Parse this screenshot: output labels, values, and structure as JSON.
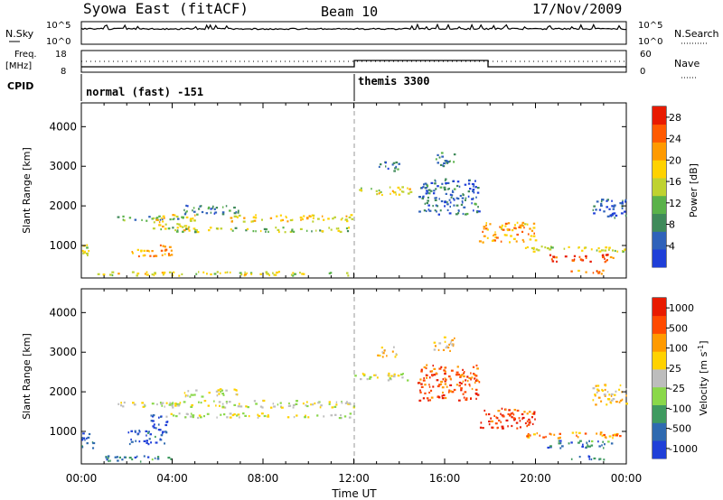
{
  "header": {
    "station": "Syowa East (fitACF)",
    "beam": "Beam 10",
    "date": "17/Nov/2009"
  },
  "noise_panel": {
    "left_label": "N.Sky",
    "right_label": "N.Search",
    "left_ticks": [
      "10^5",
      "10^0"
    ],
    "right_ticks": [
      "10^5",
      "10^0"
    ]
  },
  "freq_panel": {
    "left_label_line1": "Freq.",
    "left_label_line2": "[MHz]",
    "right_label": "Nave",
    "left_ticks": [
      "18",
      "8"
    ],
    "right_ticks": [
      "60",
      "0"
    ],
    "cpid_label": "CPID",
    "modes": [
      {
        "name": "normal (fast) -151",
        "start_hour": 0,
        "end_hour": 12
      },
      {
        "name": "themis 3300",
        "start_hour": 12,
        "end_hour": 24
      }
    ]
  },
  "chart_data": [
    {
      "type": "heatmap",
      "title": "",
      "xlabel": "",
      "ylabel": "Slant Range [km]",
      "xlim": [
        0,
        24
      ],
      "ylim": [
        180,
        4600
      ],
      "yticks": [
        1000,
        2000,
        3000,
        4000
      ],
      "colorbar": {
        "label": "Power [dB]",
        "ticks": [
          "4",
          "8",
          "12",
          "16",
          "20",
          "24",
          "28"
        ],
        "range": [
          0,
          30
        ],
        "colors": [
          "#1f3fd8",
          "#2f62ba",
          "#3f8a5a",
          "#5ab24a",
          "#bfd230",
          "#ffd200",
          "#ff9a00",
          "#ff5a00",
          "#e81a00"
        ]
      },
      "bands": [
        {
          "t0": 0.0,
          "t1": 0.3,
          "r0": 700,
          "r1": 1100,
          "level": 0.5
        },
        {
          "t0": 0.2,
          "t1": 12.0,
          "r0": 260,
          "r1": 360,
          "level": 0.55
        },
        {
          "t0": 1.5,
          "t1": 4.5,
          "r0": 1640,
          "r1": 1760,
          "level": 0.3
        },
        {
          "t0": 2.2,
          "t1": 4.0,
          "r0": 750,
          "r1": 1050,
          "level": 0.72
        },
        {
          "t0": 3.0,
          "t1": 5.0,
          "r0": 1400,
          "r1": 1800,
          "level": 0.55
        },
        {
          "t0": 4.5,
          "t1": 7.0,
          "r0": 1800,
          "r1": 2050,
          "level": 0.25
        },
        {
          "t0": 6.5,
          "t1": 12.0,
          "r0": 1620,
          "r1": 1800,
          "level": 0.6
        },
        {
          "t0": 3.5,
          "t1": 12.0,
          "r0": 1360,
          "r1": 1480,
          "level": 0.45
        },
        {
          "t0": 12.0,
          "t1": 14.5,
          "r0": 2300,
          "r1": 2500,
          "level": 0.55
        },
        {
          "t0": 13.0,
          "t1": 14.0,
          "r0": 2900,
          "r1": 3150,
          "level": 0.2
        },
        {
          "t0": 15.5,
          "t1": 16.4,
          "r0": 3000,
          "r1": 3400,
          "level": 0.25
        },
        {
          "t0": 14.8,
          "t1": 17.5,
          "r0": 1800,
          "r1": 2700,
          "level": 0.2
        },
        {
          "t0": 17.5,
          "t1": 20.0,
          "r0": 1100,
          "r1": 1600,
          "level": 0.7
        },
        {
          "t0": 19.5,
          "t1": 24.0,
          "r0": 850,
          "r1": 1000,
          "level": 0.5
        },
        {
          "t0": 20.5,
          "t1": 23.5,
          "r0": 600,
          "r1": 800,
          "level": 0.85
        },
        {
          "t0": 21.5,
          "t1": 23.0,
          "r0": 300,
          "r1": 400,
          "level": 0.75
        },
        {
          "t0": 22.5,
          "t1": 24.0,
          "r0": 1700,
          "r1": 2200,
          "level": 0.15
        }
      ]
    },
    {
      "type": "heatmap",
      "title": "",
      "xlabel": "Time UT",
      "ylabel": "Slant Range [km]",
      "xlim": [
        0,
        24
      ],
      "ylim": [
        180,
        4600
      ],
      "yticks": [
        1000,
        2000,
        3000,
        4000
      ],
      "xticks": [
        "00:00",
        "04:00",
        "08:00",
        "12:00",
        "16:00",
        "20:00",
        "00:00"
      ],
      "colorbar": {
        "label": "Velocity [m s^-1]",
        "ticks": [
          "1000",
          "500",
          "100",
          "25",
          "-25",
          "-100",
          "-500",
          "-1000"
        ],
        "range": [
          -1000,
          1000
        ],
        "colors": [
          "#1f3fd8",
          "#2f6ab0",
          "#3f9a60",
          "#8ad84a",
          "#bdbdbd",
          "#ffd200",
          "#ff9a00",
          "#ff4a00",
          "#e81a00"
        ]
      },
      "bands": [
        {
          "t0": 0.0,
          "t1": 0.5,
          "r0": 600,
          "r1": 1100,
          "level": 0.15
        },
        {
          "t0": 0.5,
          "t1": 4.0,
          "r0": 260,
          "r1": 400,
          "level": 0.2
        },
        {
          "t0": 2.0,
          "t1": 3.8,
          "r0": 700,
          "r1": 1050,
          "level": 0.1
        },
        {
          "t0": 3.0,
          "t1": 3.8,
          "r0": 1050,
          "r1": 1450,
          "level": 0.15
        },
        {
          "t0": 1.5,
          "t1": 4.5,
          "r0": 1640,
          "r1": 1760,
          "level": 0.5
        },
        {
          "t0": 3.5,
          "t1": 12.0,
          "r0": 1620,
          "r1": 1800,
          "level": 0.5
        },
        {
          "t0": 3.5,
          "t1": 12.0,
          "r0": 1360,
          "r1": 1480,
          "level": 0.5
        },
        {
          "t0": 4.5,
          "t1": 7.0,
          "r0": 1900,
          "r1": 2100,
          "level": 0.5
        },
        {
          "t0": 12.0,
          "t1": 14.5,
          "r0": 2300,
          "r1": 2500,
          "level": 0.5
        },
        {
          "t0": 13.0,
          "t1": 14.0,
          "r0": 2900,
          "r1": 3150,
          "level": 0.62
        },
        {
          "t0": 15.5,
          "t1": 16.4,
          "r0": 3000,
          "r1": 3400,
          "level": 0.62
        },
        {
          "t0": 14.8,
          "t1": 17.5,
          "r0": 1800,
          "r1": 2700,
          "level": 0.85
        },
        {
          "t0": 17.5,
          "t1": 20.0,
          "r0": 1100,
          "r1": 1600,
          "level": 0.9
        },
        {
          "t0": 19.5,
          "t1": 24.0,
          "r0": 850,
          "r1": 1000,
          "level": 0.75
        },
        {
          "t0": 20.5,
          "t1": 23.5,
          "r0": 600,
          "r1": 800,
          "level": 0.2
        },
        {
          "t0": 21.5,
          "t1": 23.0,
          "r0": 300,
          "r1": 400,
          "level": 0.18
        },
        {
          "t0": 22.5,
          "t1": 24.0,
          "r0": 1700,
          "r1": 2200,
          "level": 0.62
        }
      ]
    }
  ]
}
